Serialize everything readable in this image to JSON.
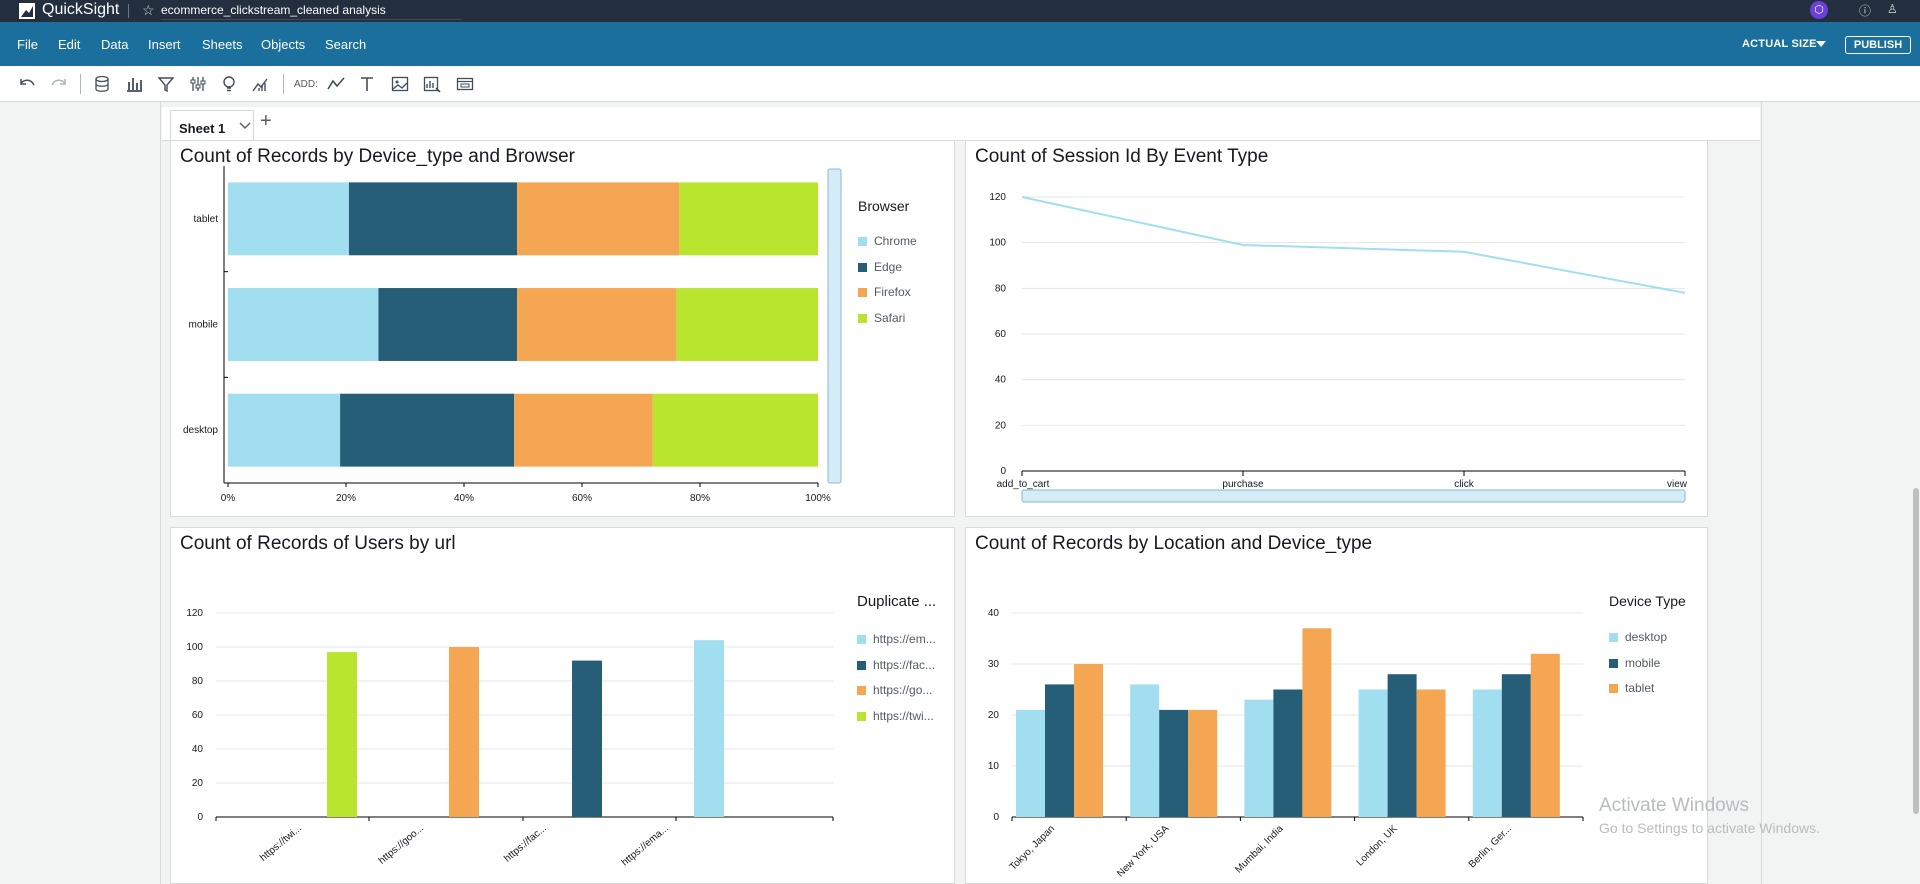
{
  "titlebar": {
    "brand": "QuickSight",
    "analysis_name": "ecommerce_clickstream_cleaned analysis"
  },
  "menu": {
    "items": [
      "File",
      "Edit",
      "Data",
      "Insert",
      "Sheets",
      "Objects",
      "Search"
    ],
    "actual_size": "ACTUAL SIZE",
    "publish": "PUBLISH"
  },
  "toolbar": {
    "add_label": "ADD:",
    "icons": [
      "undo-icon",
      "redo-icon",
      "dataset-icon",
      "visualize-icon",
      "filter-icon",
      "parameters-icon",
      "insights-icon",
      "ml-icon",
      "add-line-chart-icon",
      "add-text-icon",
      "add-image-icon",
      "add-insight-icon",
      "add-tile-icon"
    ]
  },
  "sheet": {
    "tab_label": "Sheet 1"
  },
  "visuals": {
    "device_browser": {
      "title": "Count of Records by Device_type and Browser",
      "legend_title": "Browser"
    },
    "session_event": {
      "title": "Count of Session Id By Event Type"
    },
    "users_url": {
      "title": "Count of Records of Users by url",
      "legend_title": "Duplicate ..."
    },
    "location_device": {
      "title": "Count of Records by Location and Device_type",
      "legend_title": "Device Type"
    }
  },
  "colors": {
    "chrome": "#a1def0",
    "edge": "#265e78",
    "firefox": "#f5a653",
    "safari": "#b9e52f"
  },
  "watermark": {
    "line1": "Activate Windows",
    "line2": "Go to Settings to activate Windows."
  },
  "chart_data": [
    {
      "id": "device_browser",
      "type": "bar",
      "orientation": "horizontal",
      "stacked": "percent",
      "categories": [
        "tablet",
        "mobile",
        "desktop"
      ],
      "series": [
        {
          "name": "Chrome",
          "values": [
            20.5,
            25.5,
            19.0
          ]
        },
        {
          "name": "Edge",
          "values": [
            28.5,
            23.5,
            29.5
          ]
        },
        {
          "name": "Firefox",
          "values": [
            27.5,
            27.0,
            23.5
          ]
        },
        {
          "name": "Safari",
          "values": [
            23.5,
            24.0,
            28.0
          ]
        }
      ],
      "xticks": [
        "0%",
        "20%",
        "40%",
        "60%",
        "80%",
        "100%"
      ],
      "xlim": [
        0,
        100
      ],
      "legend": "right"
    },
    {
      "id": "session_event",
      "type": "line",
      "x": [
        "add_to_cart",
        "purchase",
        "click",
        "view"
      ],
      "series": [
        {
          "values": [
            120,
            99,
            96,
            78
          ]
        }
      ],
      "ylim": [
        0,
        120
      ],
      "yticks": [
        0,
        20,
        40,
        60,
        80,
        100,
        120
      ],
      "grid": true
    },
    {
      "id": "users_url",
      "type": "bar",
      "categories": [
        "https://twi...",
        "https://goo...",
        "https://fac...",
        "https://ema..."
      ],
      "series": [
        {
          "name": "https://em...",
          "values": [
            0,
            0,
            0,
            104
          ]
        },
        {
          "name": "https://fac...",
          "values": [
            0,
            0,
            92,
            0
          ]
        },
        {
          "name": "https://go...",
          "values": [
            0,
            100,
            0,
            0
          ]
        },
        {
          "name": "https://twi...",
          "values": [
            97,
            0,
            0,
            0
          ]
        }
      ],
      "ylim": [
        0,
        120
      ],
      "yticks": [
        0,
        20,
        40,
        60,
        80,
        100,
        120
      ],
      "grid": true,
      "legend": "right"
    },
    {
      "id": "location_device",
      "type": "bar",
      "categories": [
        "Tokyo, Japan",
        "New York, USA",
        "Mumbai, India",
        "London, UK",
        "Berlin, Ger..."
      ],
      "series": [
        {
          "name": "desktop",
          "values": [
            21,
            26,
            23,
            25,
            25
          ]
        },
        {
          "name": "mobile",
          "values": [
            26,
            21,
            25,
            28,
            28
          ]
        },
        {
          "name": "tablet",
          "values": [
            30,
            21,
            37,
            25,
            32
          ]
        }
      ],
      "ylim": [
        0,
        40
      ],
      "yticks": [
        0,
        10,
        20,
        30,
        40
      ],
      "grid": true,
      "legend": "right"
    }
  ]
}
